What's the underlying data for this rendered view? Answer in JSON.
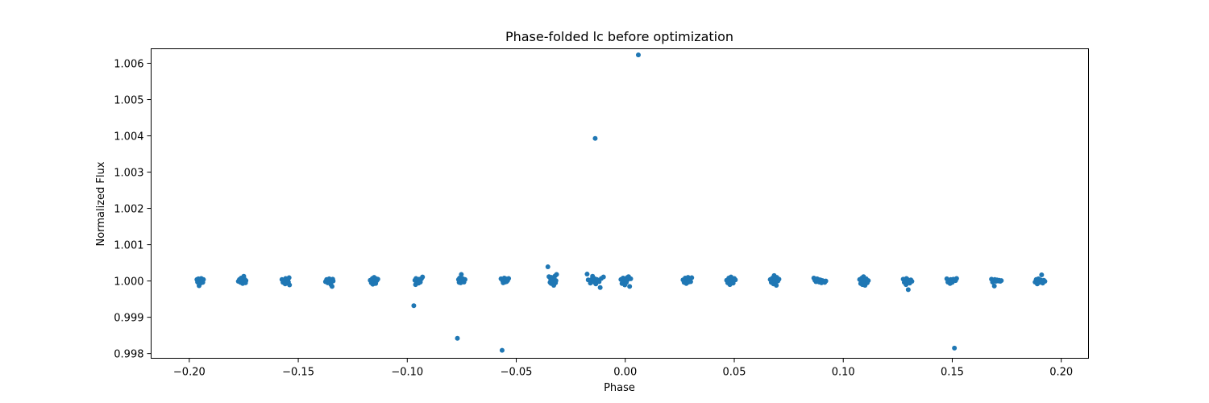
{
  "chart_data": {
    "type": "scatter",
    "title": "Phase-folded lc before optimization",
    "xlabel": "Phase",
    "ylabel": "Normalized Flux",
    "xlim": [
      -0.2175,
      0.2125
    ],
    "ylim": [
      0.99787,
      1.0064
    ],
    "xticks": [
      -0.2,
      -0.15,
      -0.1,
      -0.05,
      0.0,
      0.05,
      0.1,
      0.15,
      0.2
    ],
    "xtick_labels": [
      "−0.20",
      "−0.15",
      "−0.10",
      "−0.05",
      "0.00",
      "0.05",
      "0.10",
      "0.15",
      "0.20"
    ],
    "yticks": [
      0.998,
      0.999,
      1.0,
      1.001,
      1.002,
      1.003,
      1.004,
      1.005,
      1.006
    ],
    "ytick_labels": [
      "0.998",
      "0.999",
      "1.000",
      "1.001",
      "1.002",
      "1.003",
      "1.004",
      "1.005",
      "1.006"
    ],
    "grid": false,
    "marker_color": "#1f77b4",
    "series": [
      {
        "x": [
          -0.1965,
          -0.1962,
          -0.1958,
          -0.1955,
          -0.1952,
          -0.195,
          -0.1948,
          -0.1945,
          -0.1942,
          -0.194,
          -0.1938,
          -0.1935,
          -0.1775,
          -0.177,
          -0.1765,
          -0.1762,
          -0.1758,
          -0.1755,
          -0.1752,
          -0.175,
          -0.1748,
          -0.1745,
          -0.1742,
          -0.174,
          -0.1575,
          -0.157,
          -0.1565,
          -0.156,
          -0.1558,
          -0.1555,
          -0.1552,
          -0.155,
          -0.1548,
          -0.1545,
          -0.1542,
          -0.154,
          -0.1375,
          -0.137,
          -0.1365,
          -0.1362,
          -0.1358,
          -0.1355,
          -0.1352,
          -0.135,
          -0.1348,
          -0.1345,
          -0.1342,
          -0.134,
          -0.117,
          -0.1165,
          -0.116,
          -0.1158,
          -0.1155,
          -0.1152,
          -0.115,
          -0.1148,
          -0.1145,
          -0.1142,
          -0.114,
          -0.1135,
          -0.097,
          -0.0965,
          -0.0962,
          -0.096,
          -0.0958,
          -0.0955,
          -0.0952,
          -0.095,
          -0.0948,
          -0.0945,
          -0.0942,
          -0.094,
          -0.0935,
          -0.093,
          -0.077,
          -0.0765,
          -0.0762,
          -0.076,
          -0.0758,
          -0.0755,
          -0.0752,
          -0.075,
          -0.0748,
          -0.0745,
          -0.0742,
          -0.074,
          -0.0735,
          -0.057,
          -0.0565,
          -0.0562,
          -0.056,
          -0.0558,
          -0.0555,
          -0.0552,
          -0.055,
          -0.0548,
          -0.0545,
          -0.0542,
          -0.054,
          -0.0535,
          -0.0355,
          -0.035,
          -0.0345,
          -0.0342,
          -0.034,
          -0.0338,
          -0.0335,
          -0.0332,
          -0.033,
          -0.0328,
          -0.0325,
          -0.0322,
          -0.032,
          -0.0318,
          -0.0315,
          -0.0175,
          -0.017,
          -0.016,
          -0.0155,
          -0.015,
          -0.0145,
          -0.0142,
          -0.014,
          -0.0138,
          -0.0135,
          -0.013,
          -0.0125,
          -0.012,
          -0.0115,
          -0.011,
          -0.01,
          -0.002,
          -0.0015,
          -0.001,
          -0.0008,
          -0.0005,
          -0.0002,
          0.0,
          0.0003,
          0.0005,
          0.0008,
          0.001,
          0.0015,
          0.002,
          0.0025,
          0.006,
          0.0265,
          0.027,
          0.0275,
          0.028,
          0.0283,
          0.0285,
          0.0288,
          0.029,
          0.0293,
          0.0295,
          0.03,
          0.0305,
          0.0465,
          0.047,
          0.0475,
          0.048,
          0.0483,
          0.0485,
          0.0488,
          0.049,
          0.0493,
          0.0495,
          0.05,
          0.0505,
          0.0665,
          0.067,
          0.0675,
          0.068,
          0.0683,
          0.0685,
          0.0688,
          0.069,
          0.0693,
          0.0695,
          0.07,
          0.0705,
          0.0865,
          0.087,
          0.0875,
          0.088,
          0.0885,
          0.089,
          0.0895,
          0.09,
          0.0905,
          0.091,
          0.0915,
          0.092,
          0.1075,
          0.108,
          0.1085,
          0.1088,
          0.109,
          0.1093,
          0.1095,
          0.1098,
          0.11,
          0.1105,
          0.111,
          0.1115,
          0.1275,
          0.128,
          0.1285,
          0.1288,
          0.129,
          0.1293,
          0.1295,
          0.1298,
          0.13,
          0.1305,
          0.131,
          0.1315,
          0.1475,
          0.148,
          0.1485,
          0.149,
          0.1493,
          0.1495,
          0.15,
          0.1505,
          0.151,
          0.1515,
          0.152,
          0.168,
          0.1685,
          0.169,
          0.1693,
          0.1695,
          0.17,
          0.1705,
          0.171,
          0.1715,
          0.172,
          0.1725,
          0.188,
          0.1885,
          0.189,
          0.1893,
          0.1895,
          0.19,
          0.1905,
          0.191,
          0.1915,
          0.192,
          0.1925
        ],
        "y": [
          1.00004,
          0.99997,
          1.00006,
          0.99987,
          1.00002,
          1.00005,
          0.99994,
          1.00007,
          0.99999,
          1.00003,
          0.99996,
          1.00004,
          0.99999,
          1.00004,
          0.99996,
          1.00008,
          1.00002,
          0.99993,
          1.00006,
          1.00013,
          0.99998,
          1.00004,
          0.99995,
          1.00001,
          1.00004,
          0.99996,
          1.00002,
          0.99992,
          1.00007,
          1.0,
          0.99994,
          1.00006,
          1.00003,
          0.99997,
          1.00009,
          0.99989,
          0.99998,
          1.00004,
          0.99995,
          1.00001,
          1.00006,
          0.99997,
          1.00003,
          0.9999,
          1.00002,
          0.99985,
          1.00005,
          1.0,
          1.00002,
          0.99995,
          1.00007,
          0.99991,
          1.00004,
          1.0001,
          0.99998,
          1.00003,
          0.99993,
          1.00006,
          1.00001,
          1.00005,
          0.99932,
          1.00002,
          0.9999,
          1.00007,
          0.99996,
          1.00004,
          0.99998,
          1.00001,
          0.99994,
          1.00005,
          1.0,
          0.99997,
          1.00006,
          1.00011,
          0.99842,
          1.00004,
          0.99996,
          1.00008,
          1.00001,
          0.99995,
          1.00018,
          1.00003,
          0.99998,
          1.00006,
          1.0,
          0.99997,
          1.00004,
          1.00006,
          0.99809,
          1.0,
          0.99995,
          1.00003,
          1.00008,
          0.99997,
          1.00002,
          1.00006,
          0.99998,
          1.00004,
          1.00001,
          1.00007,
          1.00039,
          1.00012,
          0.99996,
          1.00005,
          0.99993,
          1.0001,
          1.00002,
          0.99998,
          1.00007,
          0.99988,
          1.00003,
          1.00014,
          0.99995,
          1.00001,
          1.00018,
          1.00019,
          1.00003,
          0.99994,
          1.00004,
          1.00013,
          1.0,
          0.99997,
          1.00006,
          1.00393,
          0.99992,
          1.00004,
          1.00002,
          0.99998,
          0.99982,
          1.00007,
          1.00011,
          1.00004,
          0.99993,
          1.00008,
          0.99998,
          1.00002,
          0.99989,
          1.00005,
          1.0,
          0.99996,
          1.00009,
          1.00003,
          1.00012,
          0.99985,
          1.00006,
          1.00623,
          1.00003,
          0.99996,
          1.00008,
          0.99993,
          1.00005,
          1.0,
          1.0001,
          0.99997,
          1.00004,
          1.00006,
          0.99998,
          1.00009,
          1.00002,
          0.99995,
          1.00008,
          0.9999,
          1.00004,
          1.00011,
          0.99998,
          1.00006,
          1.00001,
          0.99994,
          1.00007,
          1.00003,
          1.00004,
          0.99996,
          1.00008,
          0.99992,
          1.00015,
          1.00002,
          0.99998,
          1.00006,
          0.99988,
          1.0001,
          1.0,
          1.00005,
          1.00008,
          1.00002,
          0.99998,
          1.00006,
          1.00004,
          0.99997,
          1.00003,
          0.99995,
          1.00001,
          0.99999,
          0.99996,
          1.0,
          1.00004,
          0.99993,
          1.00008,
          0.9999,
          1.00003,
          1.00012,
          0.99997,
          1.00005,
          0.99988,
          1.00006,
          0.99995,
          1.00001,
          1.00005,
          0.99996,
          1.00002,
          0.9999,
          1.00007,
          0.99998,
          1.00004,
          0.99976,
          1.00001,
          0.99994,
          1.00003,
          0.99999,
          1.00006,
          0.99997,
          1.00002,
          0.99993,
          1.00004,
          1.0,
          0.99996,
          1.00005,
          0.99815,
          1.00001,
          1.00007,
          1.00005,
          0.99997,
          1.00002,
          0.99986,
          1.00004,
          0.99999,
          1.00003,
          1.0,
          1.00002,
          0.99999,
          1.00001,
          0.99997,
          1.00004,
          0.99992,
          1.00001,
          1.00006,
          0.99996,
          1.00003,
          1.00017,
          0.99994,
          1.00002,
          0.99999
        ]
      }
    ]
  }
}
